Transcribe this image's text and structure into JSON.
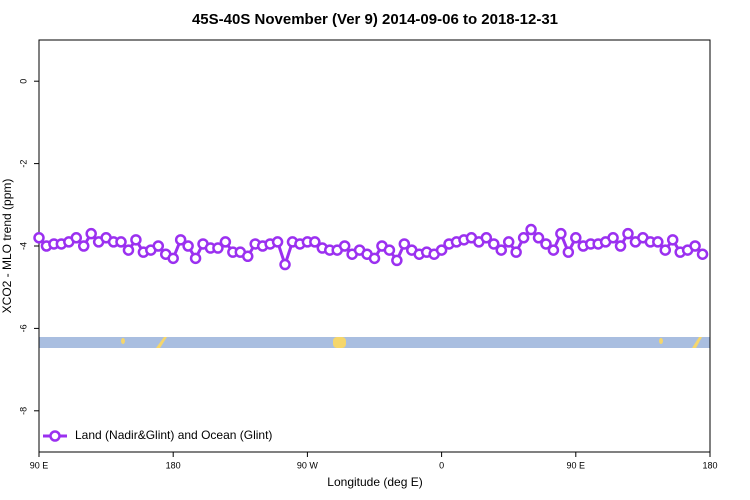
{
  "chart_data": {
    "type": "line",
    "title": "45S-40S November (Ver 9)   2014-09-06 to 2018-12-31",
    "x_label": "Longitude (deg E)",
    "y_label": "XCO2 - MLO trend (ppm)",
    "xlim": [
      90,
      540
    ],
    "xticks": [
      {
        "value": 90,
        "label": "90 E"
      },
      180,
      {
        "value": 270,
        "label": "90 W"
      },
      {
        "value": 360,
        "label": "0"
      },
      {
        "value": 450,
        "label": "90 E"
      },
      {
        "value": 540,
        "label": "180"
      }
    ],
    "ylim": [
      -9,
      1
    ],
    "yticks": [
      0,
      -2,
      -4,
      -6,
      -8
    ],
    "grid": false,
    "legend": "bottom-left",
    "x": [
      90,
      95,
      100,
      105,
      110,
      115,
      120,
      125,
      130,
      135,
      140,
      145,
      150,
      155,
      160,
      165,
      170,
      175,
      180,
      185,
      190,
      195,
      200,
      205,
      210,
      215,
      220,
      225,
      230,
      235,
      240,
      245,
      250,
      255,
      260,
      265,
      270,
      275,
      280,
      285,
      290,
      295,
      300,
      305,
      310,
      315,
      320,
      325,
      330,
      335,
      340,
      345,
      350,
      355,
      360,
      365,
      370,
      375,
      380,
      385,
      390,
      395,
      400,
      405,
      410,
      415,
      420,
      425,
      430,
      435,
      440,
      445,
      450,
      455,
      460,
      465,
      470,
      475,
      480,
      485,
      490,
      495,
      500,
      505,
      510,
      515,
      520,
      525,
      530,
      535
    ],
    "series": [
      {
        "name": "Land (Nadir&Glint) and Ocean (Glint)",
        "color": "#9b30f0",
        "values": [
          -3.8,
          -4.0,
          -3.95,
          -3.95,
          -3.9,
          -3.8,
          -4.0,
          -3.7,
          -3.9,
          -3.8,
          -3.9,
          -3.9,
          -4.1,
          -3.85,
          -4.15,
          -4.1,
          -4.0,
          -4.2,
          -4.3,
          -3.85,
          -4.0,
          -4.3,
          -3.95,
          -4.05,
          -4.05,
          -3.9,
          -4.15,
          -4.15,
          -4.25,
          -3.95,
          -4.0,
          -3.95,
          -3.9,
          -4.45,
          -3.9,
          -3.95,
          -3.9,
          -3.9,
          -4.05,
          -4.1,
          -4.1,
          -4.0,
          -4.2,
          -4.1,
          -4.2,
          -4.3,
          -4.0,
          -4.1,
          -4.35,
          -3.95,
          -4.1,
          -4.2,
          -4.15,
          -4.2,
          -4.1,
          -3.95,
          -3.9,
          -3.85,
          -3.8,
          -3.9,
          -3.8,
          -3.95,
          -4.1,
          -3.9,
          -4.15,
          -3.8,
          -3.6,
          -3.8,
          -3.95,
          -4.1,
          -3.7,
          -4.15,
          -3.8,
          -4.0,
          -3.95,
          -3.95,
          -3.9,
          -3.8,
          -4.0,
          -3.7,
          -3.9,
          -3.8,
          -3.9,
          -3.9,
          -4.1,
          -3.85,
          -4.15,
          -4.1,
          -4.0,
          -4.2
        ]
      }
    ]
  }
}
